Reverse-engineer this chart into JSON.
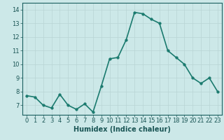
{
  "x": [
    0,
    1,
    2,
    3,
    4,
    5,
    6,
    7,
    8,
    9,
    10,
    11,
    12,
    13,
    14,
    15,
    16,
    17,
    18,
    19,
    20,
    21,
    22,
    23
  ],
  "y": [
    7.7,
    7.6,
    7.0,
    6.8,
    7.8,
    7.0,
    6.7,
    7.1,
    6.5,
    8.4,
    10.4,
    10.5,
    11.8,
    13.8,
    13.7,
    13.3,
    13.0,
    11.0,
    10.5,
    10.0,
    9.0,
    8.6,
    9.0,
    8.0
  ],
  "xlabel": "Humidex (Indice chaleur)",
  "ylim": [
    6.3,
    14.5
  ],
  "xlim": [
    -0.5,
    23.5
  ],
  "yticks": [
    7,
    8,
    9,
    10,
    11,
    12,
    13,
    14
  ],
  "xticks": [
    0,
    1,
    2,
    3,
    4,
    5,
    6,
    7,
    8,
    9,
    10,
    11,
    12,
    13,
    14,
    15,
    16,
    17,
    18,
    19,
    20,
    21,
    22,
    23
  ],
  "line_color": "#1a7a6e",
  "marker_color": "#1a7a6e",
  "bg_color": "#cce8e8",
  "grid_color": "#b8d4d4",
  "axis_color": "#1a6060",
  "tick_label_color": "#1a5555",
  "xlabel_color": "#1a5555",
  "xlabel_fontsize": 7,
  "tick_fontsize": 6,
  "line_width": 1.2,
  "marker_size": 2.5
}
